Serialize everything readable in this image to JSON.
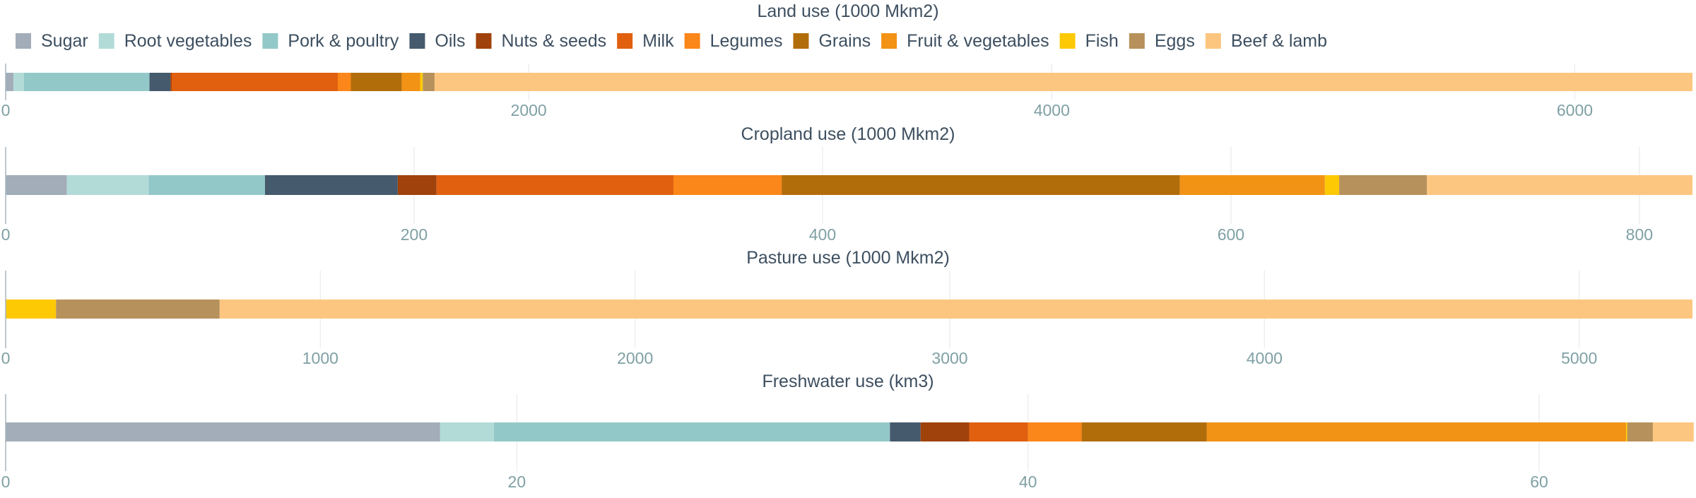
{
  "chart_data": {
    "type": "bar",
    "orientation": "horizontal-stacked",
    "legend_position": "top-left",
    "grid": true,
    "categories": [
      "Sugar",
      "Root vegetables",
      "Pork & poultry",
      "Oils",
      "Nuts & seeds",
      "Milk",
      "Legumes",
      "Grains",
      "Fruit & vegetables",
      "Fish",
      "Eggs",
      "Beef & lamb"
    ],
    "colors": [
      "#a2adb9",
      "#b2dbd8",
      "#93c8c8",
      "#455a6d",
      "#a0420b",
      "#e0600f",
      "#fb8619",
      "#b26d0b",
      "#f29315",
      "#fdc905",
      "#b7915b",
      "#fdc680"
    ],
    "panels": [
      {
        "title": "Land use (1000 Mkm2)",
        "xlim": [
          0,
          6450
        ],
        "ticks": [
          "0",
          "2000",
          "4000",
          "6000"
        ],
        "tick_values": [
          0,
          2000,
          4000,
          6000
        ],
        "values": [
          30,
          40,
          480,
          80,
          5,
          635,
          50,
          195,
          70,
          10,
          45,
          4810
        ]
      },
      {
        "title": "Cropland use (1000 Mkm2)",
        "xlim": [
          0,
          826
        ],
        "ticks": [
          "0",
          "200",
          "400",
          "600",
          "800"
        ],
        "tick_values": [
          0,
          200,
          400,
          600,
          800
        ],
        "values": [
          30,
          40,
          57,
          65,
          19,
          116,
          53,
          195,
          71,
          7,
          43,
          130
        ]
      },
      {
        "title": "Pasture use (1000 Mkm2)",
        "xlim": [
          0,
          5360
        ],
        "ticks": [
          "0",
          "1000",
          "2000",
          "3000",
          "4000",
          "5000"
        ],
        "tick_values": [
          0,
          1000,
          2000,
          3000,
          4000,
          5000
        ],
        "values": [
          0,
          0,
          0,
          0,
          0,
          0,
          0,
          0,
          0,
          160,
          520,
          4680
        ]
      },
      {
        "title": "Freshwater use (km3)",
        "xlim": [
          0,
          66
        ],
        "ticks": [
          "0",
          "20",
          "40",
          "60"
        ],
        "tick_values": [
          0,
          20,
          40,
          60
        ],
        "values": [
          17.0,
          2.1,
          15.5,
          1.2,
          1.9,
          2.3,
          2.1,
          4.9,
          16.4,
          0.05,
          1.0,
          1.6
        ]
      }
    ]
  }
}
